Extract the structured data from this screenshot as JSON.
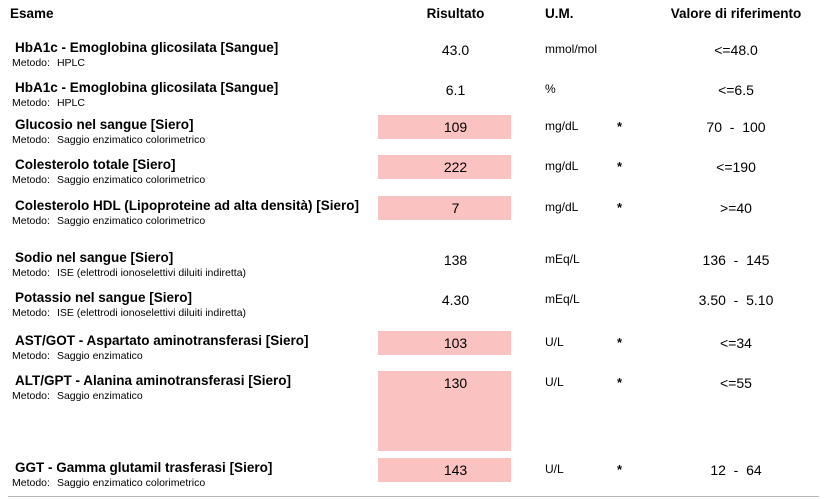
{
  "header": {
    "exam": "Esame",
    "result": "Risultato",
    "unit": "U.M.",
    "reference": "Valore di riferimento"
  },
  "labels": {
    "method": "Metodo:"
  },
  "colors": {
    "abnormal_highlight": "#fbc2c2",
    "text": "#000000",
    "footer_line": "#b5b5b5"
  },
  "rows": [
    {
      "name": "HbA1c - Emoglobina glicosilata [Sangue]",
      "method": "HPLC",
      "result": "43.0",
      "unit": "mmol/mol",
      "flag": "",
      "reference": "<=48.0",
      "highlighted": false
    },
    {
      "name": "HbA1c - Emoglobina glicosilata [Sangue]",
      "method": "HPLC",
      "result": "6.1",
      "unit": "%",
      "flag": "",
      "reference": "<=6.5",
      "highlighted": false
    },
    {
      "name": "Glucosio nel sangue [Siero]",
      "method": "Saggio enzimatico colorimetrico",
      "result": "109",
      "unit": "mg/dL",
      "flag": "*",
      "reference": "70  -  100",
      "highlighted": true
    },
    {
      "name": "Colesterolo totale [Siero]",
      "method": "Saggio enzimatico colorimetrico",
      "result": "222",
      "unit": "mg/dL",
      "flag": "*",
      "reference": "<=190",
      "highlighted": true
    },
    {
      "name": "Colesterolo HDL (Lipoproteine ad alta densità) [Siero]",
      "method": "Saggio enzimatico colorimetrico",
      "result": "7",
      "unit": "mg/dL",
      "flag": "*",
      "reference": ">=40",
      "highlighted": true
    },
    {
      "name": "Sodio nel sangue [Siero]",
      "method": "ISE (elettrodi ionoselettivi diluiti indiretta)",
      "result": "138",
      "unit": "mEq/L",
      "flag": "",
      "reference": "136  -  145",
      "highlighted": false
    },
    {
      "name": "Potassio nel sangue [Siero]",
      "method": "ISE (elettrodi ionoselettivi diluiti indiretta)",
      "result": "4.30",
      "unit": "mEq/L",
      "flag": "",
      "reference": "3.50  -  5.10",
      "highlighted": false
    },
    {
      "name": "AST/GOT - Aspartato aminotransferasi [Siero]",
      "method": "Saggio enzimatico",
      "result": "103",
      "unit": "U/L",
      "flag": "*",
      "reference": "<=34",
      "highlighted": true
    },
    {
      "name": "ALT/GPT - Alanina aminotransferasi [Siero]",
      "method": "Saggio enzimatico",
      "result": "130",
      "unit": "U/L",
      "flag": "*",
      "reference": "<=55",
      "highlighted": true
    },
    {
      "name": "GGT - Gamma glutamil trasferasi [Siero]",
      "method": "Saggio enzimatico colorimetrico",
      "result": "143",
      "unit": "U/L",
      "flag": "*",
      "reference": "12  -  64",
      "highlighted": true
    }
  ]
}
